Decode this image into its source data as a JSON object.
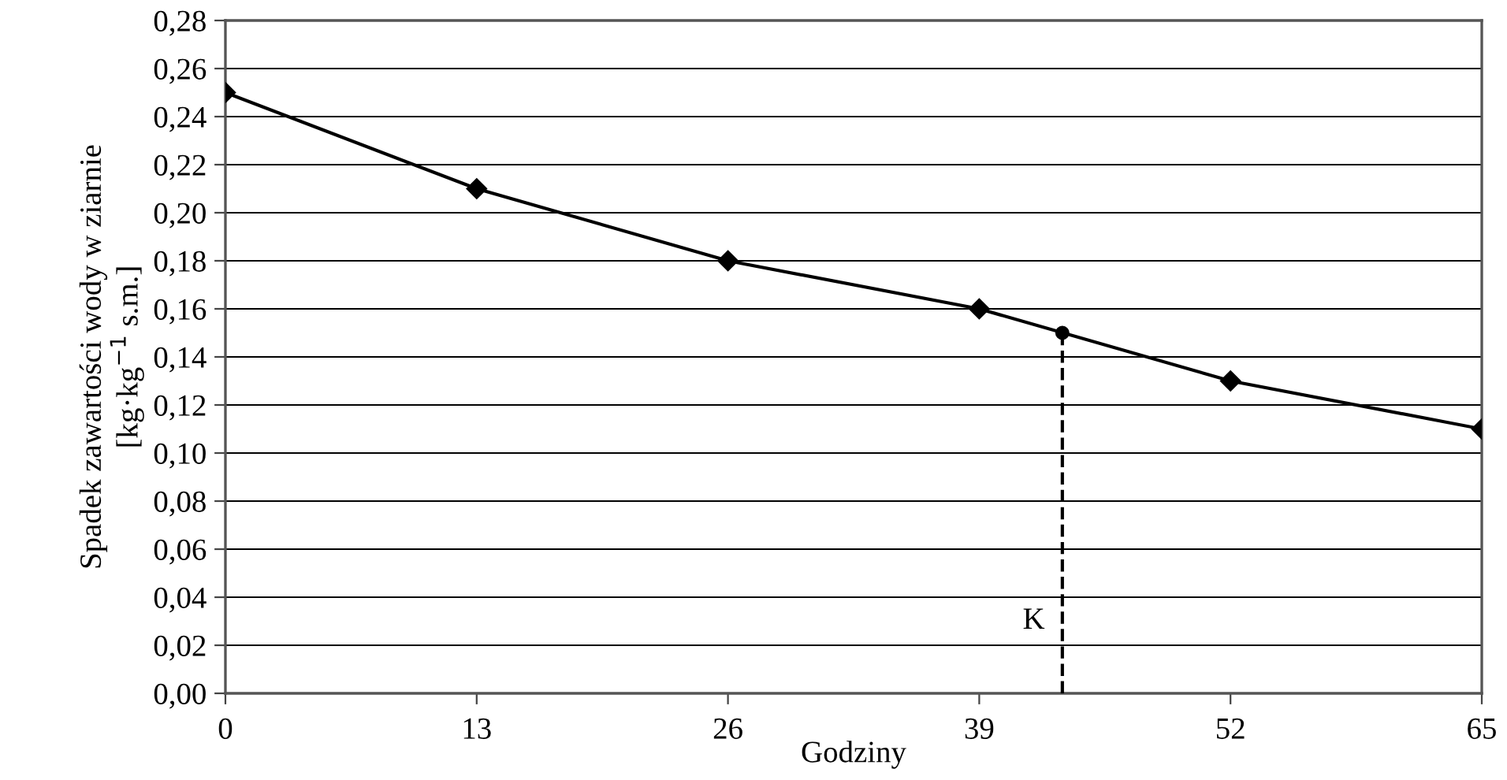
{
  "chart_data": {
    "type": "line",
    "xlabel": "Godziny",
    "ylabel": "Spadek zawartości wody w ziarnie\n[kg·kg$^{−1}$ s.m.]",
    "x": [
      0,
      13,
      26,
      39,
      52,
      65
    ],
    "series": [
      {
        "color": "#000000",
        "values": [
          0.25,
          0.21,
          0.18,
          0.16,
          0.13,
          0.11
        ],
        "marker": "diamond"
      },
      {
        "type": "scatter",
        "x": [
          43.3
        ],
        "values": [
          0.15
        ],
        "color": "#000000",
        "marker": "circle"
      }
    ],
    "ref_lines": [
      {
        "axis": "x",
        "value": 43.3,
        "label": "K",
        "color": "#000000",
        "line_style": "dashed"
      }
    ],
    "xlim": [
      0,
      65
    ],
    "xticks": [
      0,
      13,
      26,
      39,
      52,
      65
    ],
    "ylim": [
      0,
      0.28
    ],
    "yticks": [
      {
        "value": 0,
        "label": "0,00"
      },
      {
        "value": 0.02,
        "label": "0,02"
      },
      {
        "value": 0.04,
        "label": "0,04"
      },
      {
        "value": 0.06,
        "label": "0,06"
      },
      {
        "value": 0.08,
        "label": "0,08"
      },
      {
        "value": 0.1,
        "label": "0,10"
      },
      {
        "value": 0.12,
        "label": "0,12"
      },
      {
        "value": 0.14,
        "label": "0,14"
      },
      {
        "value": 0.16,
        "label": "0,16"
      },
      {
        "value": 0.18,
        "label": "0,18"
      },
      {
        "value": 0.2,
        "label": "0,20"
      },
      {
        "value": 0.22,
        "label": "0,22"
      },
      {
        "value": 0.24,
        "label": "0,24"
      },
      {
        "value": 0.26,
        "label": "0,26"
      },
      {
        "value": 0.28,
        "label": "0,28"
      }
    ],
    "grid": "y",
    "line_style": "solid"
  }
}
